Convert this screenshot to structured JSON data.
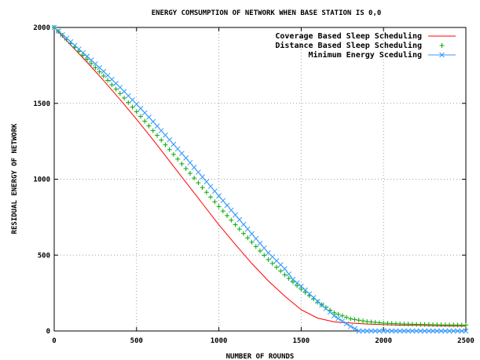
{
  "chart_data": {
    "type": "line",
    "title": "ENERGY COMSUMPTION OF NETWORK WHEN BASE STATION IS 0,0",
    "xlabel": "NUMBER OF ROUNDS",
    "ylabel": "RESIDUAL ENERGY OF NETWORK",
    "xlim": [
      0,
      2500
    ],
    "ylim": [
      0,
      2000
    ],
    "xticks": [
      "0",
      "500",
      "1000",
      "1500",
      "2000",
      "2500"
    ],
    "yticks": [
      "0",
      "500",
      "1000",
      "1500",
      "2000"
    ],
    "grid": true,
    "legend_position": "top-right",
    "series": [
      {
        "name": "Coverage Based Sleep Scheduling",
        "color": "#ff0000",
        "marker": "none",
        "x": [
          0,
          100,
          200,
          300,
          400,
          500,
          600,
          700,
          800,
          900,
          1000,
          1100,
          1200,
          1300,
          1400,
          1500,
          1600,
          1700,
          1800,
          1900,
          2000,
          2100,
          2200,
          2300,
          2400,
          2500
        ],
        "y": [
          2000,
          1885,
          1770,
          1650,
          1525,
          1395,
          1260,
          1120,
          980,
          840,
          700,
          570,
          445,
          330,
          230,
          140,
          85,
          60,
          52,
          46,
          42,
          39,
          37,
          35,
          33,
          32
        ]
      },
      {
        "name": "Distance Based Sleep Scheduling",
        "color": "#00aa00",
        "marker": "plus",
        "x": [
          0,
          100,
          200,
          300,
          400,
          500,
          600,
          700,
          800,
          900,
          1000,
          1100,
          1200,
          1300,
          1400,
          1500,
          1600,
          1700,
          1800,
          1900,
          2000,
          2100,
          2200,
          2300,
          2400,
          2500
        ],
        "y": [
          2000,
          1895,
          1790,
          1680,
          1565,
          1445,
          1320,
          1195,
          1070,
          945,
          820,
          700,
          585,
          470,
          370,
          275,
          190,
          120,
          80,
          62,
          52,
          47,
          44,
          42,
          40,
          39
        ]
      },
      {
        "name": "Minimum Energy Sceduling",
        "color": "#3399ff",
        "marker": "cross",
        "x": [
          0,
          100,
          200,
          300,
          400,
          500,
          600,
          700,
          800,
          900,
          1000,
          1100,
          1200,
          1300,
          1400,
          1450,
          1500,
          1600,
          1700,
          1800,
          1850,
          1900,
          2000,
          2100,
          2200,
          2300,
          2400,
          2500
        ],
        "y": [
          2000,
          1905,
          1810,
          1710,
          1605,
          1495,
          1380,
          1260,
          1140,
          1015,
          890,
          765,
          640,
          515,
          410,
          340,
          295,
          195,
          100,
          30,
          0,
          0,
          0,
          0,
          0,
          0,
          0,
          0
        ]
      }
    ]
  }
}
